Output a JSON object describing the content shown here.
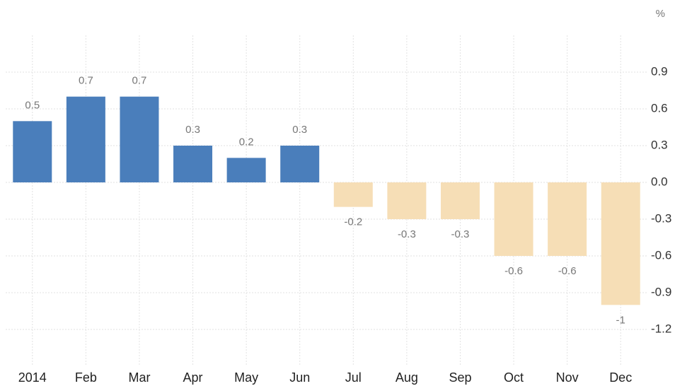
{
  "chart_data": {
    "type": "bar",
    "y_unit": "%",
    "categories": [
      "2014",
      "Feb",
      "Mar",
      "Apr",
      "May",
      "Jun",
      "Jul",
      "Aug",
      "Sep",
      "Oct",
      "Nov",
      "Dec"
    ],
    "values": [
      0.5,
      0.7,
      0.7,
      0.3,
      0.2,
      0.3,
      -0.2,
      -0.3,
      -0.3,
      -0.6,
      -0.6,
      -1
    ],
    "positive_color": "#4a7ebb",
    "negative_color": "#f6deb6",
    "ylim": [
      -1.5,
      1.2
    ],
    "yticks": [
      0.9,
      0.6,
      0.3,
      {
        "value": 0,
        "label": "0.0"
      },
      -0.3,
      -0.6,
      -0.9,
      -1.2
    ],
    "grid": true
  }
}
